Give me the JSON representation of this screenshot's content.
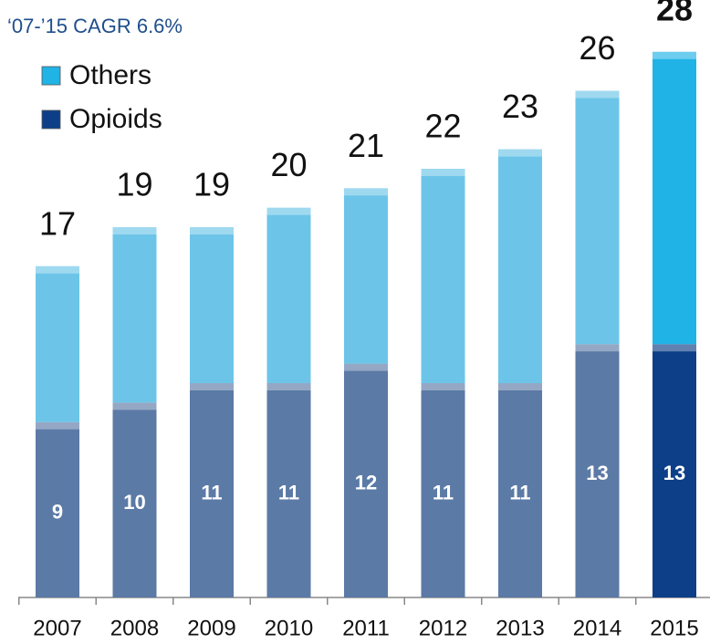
{
  "chart_data": {
    "type": "stacked_bar",
    "subtitle": "‘07-’15 CAGR 6.6%",
    "categories": [
      "2007",
      "2008",
      "2009",
      "2010",
      "2011",
      "2012",
      "2013",
      "2014",
      "2015"
    ],
    "series": [
      {
        "name": "Opioids",
        "color": "#5b7aa6",
        "highlight_color": "#0d3f88",
        "values": [
          9,
          10,
          11,
          11,
          12,
          11,
          11,
          13,
          13
        ]
      },
      {
        "name": "Others",
        "color": "#6cc5e8",
        "highlight_color": "#20b3e6",
        "values": [
          8,
          9,
          8,
          9,
          9,
          11,
          12,
          13,
          15
        ]
      }
    ],
    "totals": [
      17,
      19,
      19,
      20,
      21,
      22,
      23,
      26,
      28
    ],
    "highlight_index": 8,
    "ylim": [
      0,
      28.6
    ],
    "legend": "top-left"
  }
}
